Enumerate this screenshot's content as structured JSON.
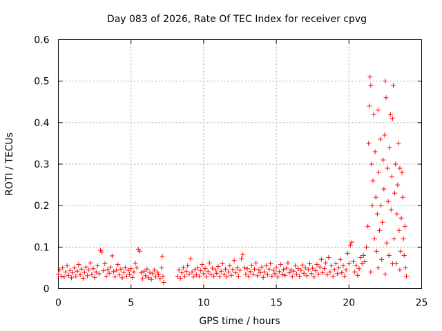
{
  "chart_data": {
    "type": "scatter",
    "title": "Day 083 of 2026, Rate Of TEC Index for receiver cpvg",
    "xlabel": "GPS time / hours",
    "ylabel": "ROTI / TECUs",
    "xlim": [
      0,
      25
    ],
    "ylim": [
      0,
      0.6
    ],
    "xticks": [
      "0",
      "5",
      "10",
      "15",
      "20",
      "25"
    ],
    "yticks": [
      "0",
      "0.1",
      "0.2",
      "0.3",
      "0.4",
      "0.5",
      "0.6"
    ],
    "grid": true,
    "marker": "+",
    "color": "#ff0000",
    "series": [
      {
        "points": [
          [
            0.0,
            0.035
          ],
          [
            0.1,
            0.045
          ],
          [
            0.2,
            0.03
          ],
          [
            0.3,
            0.05
          ],
          [
            0.4,
            0.028
          ],
          [
            0.5,
            0.04
          ],
          [
            0.6,
            0.055
          ],
          [
            0.7,
            0.032
          ],
          [
            0.8,
            0.044
          ],
          [
            0.9,
            0.026
          ],
          [
            1.0,
            0.038
          ],
          [
            1.1,
            0.05
          ],
          [
            1.2,
            0.03
          ],
          [
            1.3,
            0.042
          ],
          [
            1.4,
            0.058
          ],
          [
            1.5,
            0.033
          ],
          [
            1.6,
            0.047
          ],
          [
            1.7,
            0.025
          ],
          [
            1.8,
            0.039
          ],
          [
            1.9,
            0.052
          ],
          [
            2.0,
            0.031
          ],
          [
            2.1,
            0.045
          ],
          [
            2.2,
            0.062
          ],
          [
            2.3,
            0.034
          ],
          [
            2.4,
            0.048
          ],
          [
            2.5,
            0.027
          ],
          [
            2.6,
            0.04
          ],
          [
            2.7,
            0.055
          ],
          [
            2.8,
            0.036
          ],
          [
            2.9,
            0.092
          ],
          [
            3.0,
            0.088
          ],
          [
            3.1,
            0.043
          ],
          [
            3.2,
            0.06
          ],
          [
            3.3,
            0.03
          ],
          [
            3.4,
            0.046
          ],
          [
            3.5,
            0.037
          ],
          [
            3.6,
            0.052
          ],
          [
            3.7,
            0.079
          ],
          [
            3.8,
            0.041
          ],
          [
            3.9,
            0.028
          ],
          [
            4.0,
            0.044
          ],
          [
            4.1,
            0.058
          ],
          [
            4.2,
            0.033
          ],
          [
            4.3,
            0.047
          ],
          [
            4.4,
            0.026
          ],
          [
            4.5,
            0.039
          ],
          [
            4.6,
            0.051
          ],
          [
            4.7,
            0.03
          ],
          [
            4.8,
            0.044
          ],
          [
            4.9,
            0.035
          ],
          [
            5.0,
            0.048
          ],
          [
            5.1,
            0.027
          ],
          [
            5.2,
            0.04
          ],
          [
            5.3,
            0.061
          ],
          [
            5.4,
            0.05
          ],
          [
            5.5,
            0.095
          ],
          [
            5.6,
            0.09
          ],
          [
            5.7,
            0.038
          ],
          [
            5.8,
            0.024
          ],
          [
            5.9,
            0.042
          ],
          [
            6.0,
            0.031
          ],
          [
            6.1,
            0.047
          ],
          [
            6.2,
            0.026
          ],
          [
            6.3,
            0.039
          ],
          [
            6.4,
            0.022
          ],
          [
            6.5,
            0.036
          ],
          [
            6.6,
            0.045
          ],
          [
            6.7,
            0.028
          ],
          [
            6.8,
            0.04
          ],
          [
            6.9,
            0.033
          ],
          [
            7.0,
            0.024
          ],
          [
            7.1,
            0.05
          ],
          [
            7.15,
            0.078
          ],
          [
            7.2,
            0.03
          ],
          [
            7.25,
            0.015
          ],
          [
            8.2,
            0.03
          ],
          [
            8.3,
            0.045
          ],
          [
            8.4,
            0.025
          ],
          [
            8.5,
            0.038
          ],
          [
            8.6,
            0.05
          ],
          [
            8.7,
            0.03
          ],
          [
            8.8,
            0.042
          ],
          [
            8.9,
            0.055
          ],
          [
            9.0,
            0.035
          ],
          [
            9.1,
            0.072
          ],
          [
            9.2,
            0.04
          ],
          [
            9.3,
            0.028
          ],
          [
            9.4,
            0.046
          ],
          [
            9.5,
            0.033
          ],
          [
            9.6,
            0.05
          ],
          [
            9.7,
            0.03
          ],
          [
            9.8,
            0.043
          ],
          [
            9.9,
            0.058
          ],
          [
            10.0,
            0.036
          ],
          [
            10.1,
            0.048
          ],
          [
            10.2,
            0.028
          ],
          [
            10.3,
            0.041
          ],
          [
            10.4,
            0.062
          ],
          [
            10.5,
            0.034
          ],
          [
            10.6,
            0.049
          ],
          [
            10.7,
            0.03
          ],
          [
            10.8,
            0.045
          ],
          [
            10.9,
            0.037
          ],
          [
            11.0,
            0.053
          ],
          [
            11.1,
            0.029
          ],
          [
            11.2,
            0.042
          ],
          [
            11.3,
            0.06
          ],
          [
            11.4,
            0.034
          ],
          [
            11.5,
            0.047
          ],
          [
            11.6,
            0.028
          ],
          [
            11.7,
            0.04
          ],
          [
            11.8,
            0.055
          ],
          [
            11.9,
            0.032
          ],
          [
            12.0,
            0.046
          ],
          [
            12.1,
            0.068
          ],
          [
            12.2,
            0.038
          ],
          [
            12.3,
            0.05
          ],
          [
            12.4,
            0.03
          ],
          [
            12.5,
            0.044
          ],
          [
            12.6,
            0.072
          ],
          [
            12.7,
            0.082
          ],
          [
            12.8,
            0.05
          ],
          [
            12.9,
            0.035
          ],
          [
            13.0,
            0.048
          ],
          [
            13.1,
            0.029
          ],
          [
            13.2,
            0.041
          ],
          [
            13.3,
            0.056
          ],
          [
            13.4,
            0.034
          ],
          [
            13.5,
            0.047
          ],
          [
            13.6,
            0.062
          ],
          [
            13.7,
            0.031
          ],
          [
            13.8,
            0.045
          ],
          [
            13.9,
            0.038
          ],
          [
            14.0,
            0.052
          ],
          [
            14.1,
            0.027
          ],
          [
            14.2,
            0.04
          ],
          [
            14.3,
            0.055
          ],
          [
            14.4,
            0.033
          ],
          [
            14.5,
            0.047
          ],
          [
            14.6,
            0.06
          ],
          [
            14.7,
            0.03
          ],
          [
            14.8,
            0.044
          ],
          [
            14.9,
            0.036
          ],
          [
            15.0,
            0.05
          ],
          [
            15.1,
            0.028
          ],
          [
            15.2,
            0.041
          ],
          [
            15.3,
            0.058
          ],
          [
            15.4,
            0.034
          ],
          [
            15.5,
            0.046
          ],
          [
            15.6,
            0.032
          ],
          [
            15.7,
            0.049
          ],
          [
            15.8,
            0.062
          ],
          [
            15.9,
            0.038
          ],
          [
            16.0,
            0.045
          ],
          [
            16.1,
            0.029
          ],
          [
            16.2,
            0.042
          ],
          [
            16.3,
            0.055
          ],
          [
            16.4,
            0.035
          ],
          [
            16.5,
            0.048
          ],
          [
            16.6,
            0.03
          ],
          [
            16.7,
            0.044
          ],
          [
            16.8,
            0.057
          ],
          [
            16.9,
            0.037
          ],
          [
            17.0,
            0.05
          ],
          [
            17.1,
            0.031
          ],
          [
            17.2,
            0.046
          ],
          [
            17.3,
            0.06
          ],
          [
            17.4,
            0.036
          ],
          [
            17.5,
            0.049
          ],
          [
            17.6,
            0.028
          ],
          [
            17.7,
            0.043
          ],
          [
            17.8,
            0.058
          ],
          [
            17.9,
            0.035
          ],
          [
            18.0,
            0.052
          ],
          [
            18.1,
            0.07
          ],
          [
            18.2,
            0.038
          ],
          [
            18.3,
            0.048
          ],
          [
            18.4,
            0.062
          ],
          [
            18.5,
            0.033
          ],
          [
            18.6,
            0.075
          ],
          [
            18.7,
            0.04
          ],
          [
            18.8,
            0.055
          ],
          [
            18.9,
            0.03
          ],
          [
            19.0,
            0.046
          ],
          [
            19.1,
            0.06
          ],
          [
            19.2,
            0.036
          ],
          [
            19.3,
            0.05
          ],
          [
            19.4,
            0.07
          ],
          [
            19.5,
            0.038
          ],
          [
            19.6,
            0.055
          ],
          [
            19.7,
            0.03
          ],
          [
            19.8,
            0.045
          ],
          [
            19.9,
            0.085
          ],
          [
            20.0,
            0.06
          ],
          [
            20.1,
            0.105
          ],
          [
            20.2,
            0.112
          ],
          [
            20.3,
            0.065
          ],
          [
            20.4,
            0.04
          ],
          [
            20.5,
            0.055
          ],
          [
            20.6,
            0.032
          ],
          [
            20.7,
            0.048
          ],
          [
            20.8,
            0.075
          ],
          [
            20.9,
            0.06
          ],
          [
            21.0,
            0.08
          ],
          [
            21.1,
            0.065
          ],
          [
            21.2,
            0.1
          ],
          [
            21.3,
            0.15
          ],
          [
            21.35,
            0.35
          ],
          [
            21.4,
            0.44
          ],
          [
            21.45,
            0.51
          ],
          [
            21.5,
            0.49
          ],
          [
            21.55,
            0.3
          ],
          [
            21.6,
            0.2
          ],
          [
            21.65,
            0.26
          ],
          [
            21.7,
            0.42
          ],
          [
            21.75,
            0.12
          ],
          [
            21.8,
            0.33
          ],
          [
            21.85,
            0.22
          ],
          [
            21.9,
            0.09
          ],
          [
            21.95,
            0.18
          ],
          [
            22.0,
            0.43
          ],
          [
            22.05,
            0.28
          ],
          [
            22.1,
            0.14
          ],
          [
            22.15,
            0.36
          ],
          [
            22.2,
            0.2
          ],
          [
            22.25,
            0.07
          ],
          [
            22.3,
            0.16
          ],
          [
            22.35,
            0.31
          ],
          [
            22.4,
            0.24
          ],
          [
            22.45,
            0.37
          ],
          [
            22.5,
            0.5
          ],
          [
            22.55,
            0.46
          ],
          [
            22.6,
            0.11
          ],
          [
            22.65,
            0.29
          ],
          [
            22.7,
            0.21
          ],
          [
            22.75,
            0.08
          ],
          [
            22.8,
            0.34
          ],
          [
            22.85,
            0.42
          ],
          [
            22.9,
            0.19
          ],
          [
            22.95,
            0.27
          ],
          [
            23.0,
            0.41
          ],
          [
            23.05,
            0.49
          ],
          [
            23.1,
            0.12
          ],
          [
            23.15,
            0.23
          ],
          [
            23.2,
            0.3
          ],
          [
            23.25,
            0.06
          ],
          [
            23.3,
            0.18
          ],
          [
            23.35,
            0.25
          ],
          [
            23.4,
            0.35
          ],
          [
            23.45,
            0.14
          ],
          [
            23.5,
            0.29
          ],
          [
            23.55,
            0.09
          ],
          [
            23.6,
            0.17
          ],
          [
            23.65,
            0.28
          ],
          [
            23.7,
            0.22
          ],
          [
            23.75,
            0.12
          ],
          [
            23.8,
            0.08
          ],
          [
            23.85,
            0.15
          ],
          [
            23.9,
            0.05
          ],
          [
            23.95,
            0.03
          ],
          [
            21.5,
            0.04
          ],
          [
            22.0,
            0.05
          ],
          [
            22.5,
            0.035
          ],
          [
            23.0,
            0.06
          ],
          [
            23.5,
            0.045
          ]
        ]
      }
    ]
  }
}
